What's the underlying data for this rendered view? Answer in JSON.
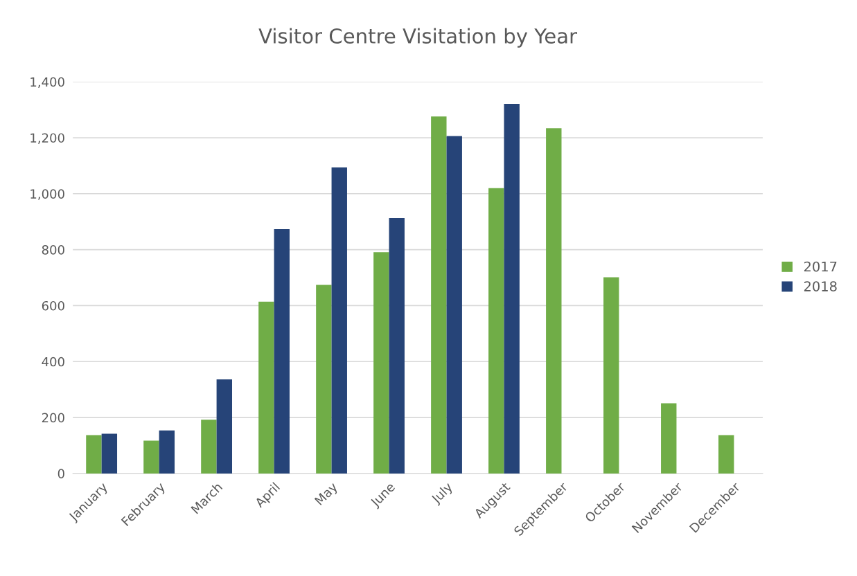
{
  "chart_data": {
    "type": "bar",
    "title": "Visitor Centre Visitation by Year",
    "categories": [
      "January",
      "February",
      "March",
      "April",
      "May",
      "June",
      "July",
      "August",
      "September",
      "October",
      "November",
      "December"
    ],
    "series": [
      {
        "name": "2017",
        "color": "#70ad47",
        "values": [
          137,
          117,
          192,
          614,
          674,
          791,
          1276,
          1020,
          1234,
          701,
          251,
          137
        ]
      },
      {
        "name": "2018",
        "color": "#264478",
        "values": [
          142,
          154,
          336,
          873,
          1094,
          913,
          1206,
          1321,
          null,
          null,
          null,
          null
        ]
      }
    ],
    "ylim": [
      0,
      1400
    ],
    "yticks": [
      {
        "value": 0,
        "label": "0"
      },
      {
        "value": 200,
        "label": "200"
      },
      {
        "value": 400,
        "label": "400"
      },
      {
        "value": 600,
        "label": "600"
      },
      {
        "value": 800,
        "label": "800"
      },
      {
        "value": 1000,
        "label": "1,000"
      },
      {
        "value": 1200,
        "label": "1,200"
      },
      {
        "value": 1400,
        "label": "1,400"
      }
    ],
    "grid": "y",
    "legend": "right"
  }
}
